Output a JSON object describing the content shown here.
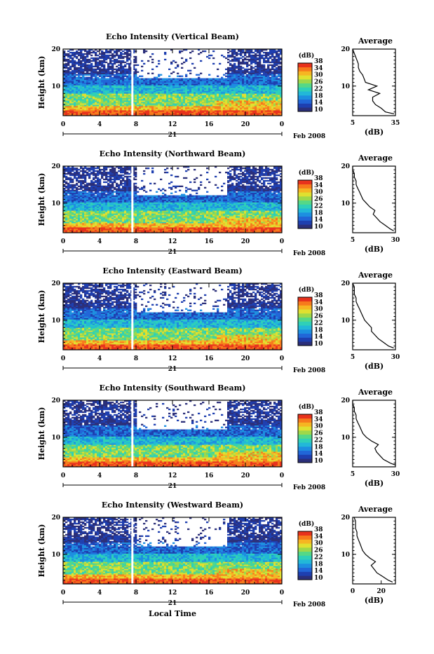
{
  "colors": {
    "scale": [
      "#2b2f7a",
      "#1e3fb0",
      "#2166d8",
      "#1d8fe0",
      "#22b8d8",
      "#2fd0b8",
      "#55d887",
      "#9ed84a",
      "#e0e030",
      "#f6b522",
      "#f77a1c",
      "#e8321c"
    ],
    "background": "#ffffff"
  },
  "chart_data": [
    {
      "type": "heatmap",
      "title": "Echo Intensity (Vertical Beam)",
      "xlabel": "",
      "ylabel": "Height (km)",
      "xlim": [
        0,
        24
      ],
      "ylim": [
        2,
        20
      ],
      "x_ticks": [
        "0",
        "4",
        "8",
        "12",
        "16",
        "20",
        "0"
      ],
      "y_ticks": [
        "20",
        "10"
      ],
      "date_day": "21",
      "date_label": "Feb 2008",
      "colorbar": {
        "unit": "(dB)",
        "ticks": [
          "38",
          "34",
          "30",
          "26",
          "22",
          "18",
          "14",
          "10"
        ],
        "range": [
          10,
          38
        ]
      },
      "profile": {
        "title": "Average",
        "xlabel": "(dB)",
        "xlim": [
          5,
          35
        ],
        "x_ticks": [
          "5",
          "35"
        ],
        "height": [
          2.5,
          3,
          4,
          5,
          6,
          7,
          8,
          9,
          10,
          11,
          12,
          13,
          14,
          15,
          16,
          17,
          18,
          19,
          20
        ],
        "value": [
          34,
          28,
          25,
          21,
          19,
          19,
          24,
          16,
          22,
          14,
          13,
          12,
          10,
          9,
          9,
          8,
          7,
          6,
          5
        ]
      }
    },
    {
      "type": "heatmap",
      "title": "Echo Intensity (Northward Beam)",
      "xlabel": "",
      "ylabel": "Height (km)",
      "xlim": [
        0,
        24
      ],
      "ylim": [
        2,
        20
      ],
      "x_ticks": [
        "0",
        "4",
        "8",
        "12",
        "16",
        "20",
        "0"
      ],
      "y_ticks": [
        "20",
        "10"
      ],
      "date_day": "21",
      "date_label": "Feb 2008",
      "colorbar": {
        "unit": "(dB)",
        "ticks": [
          "38",
          "34",
          "30",
          "26",
          "22",
          "18",
          "14",
          "10"
        ],
        "range": [
          10,
          38
        ]
      },
      "profile": {
        "title": "Average",
        "xlabel": "(dB)",
        "xlim": [
          5,
          30
        ],
        "x_ticks": [
          "5",
          "30"
        ],
        "height": [
          2.5,
          3,
          4,
          5,
          6,
          7,
          8,
          9,
          10,
          11,
          12,
          13,
          14,
          15,
          16,
          17,
          18,
          19,
          20
        ],
        "value": [
          29,
          27,
          24,
          21,
          19,
          17,
          18,
          15,
          13,
          11,
          10,
          9,
          8,
          7,
          7,
          6,
          6,
          5,
          5
        ]
      }
    },
    {
      "type": "heatmap",
      "title": "Echo Intensity (Eastward Beam)",
      "xlabel": "",
      "ylabel": "Height (km)",
      "xlim": [
        0,
        24
      ],
      "ylim": [
        2,
        20
      ],
      "x_ticks": [
        "0",
        "4",
        "8",
        "12",
        "16",
        "20",
        "0"
      ],
      "y_ticks": [
        "20",
        "10"
      ],
      "date_day": "21",
      "date_label": "Feb 2008",
      "colorbar": {
        "unit": "(dB)",
        "ticks": [
          "38",
          "34",
          "30",
          "26",
          "22",
          "18",
          "14",
          "10"
        ],
        "range": [
          10,
          38
        ]
      },
      "profile": {
        "title": "Average",
        "xlabel": "(dB)",
        "xlim": [
          5,
          30
        ],
        "x_ticks": [
          "5",
          "30"
        ],
        "height": [
          2.5,
          3,
          4,
          5,
          6,
          7,
          8,
          9,
          10,
          11,
          12,
          13,
          14,
          15,
          16,
          17,
          18,
          19,
          20
        ],
        "value": [
          29,
          26,
          23,
          20,
          18,
          16,
          16,
          14,
          12,
          11,
          10,
          9,
          8,
          7,
          7,
          6,
          6,
          6,
          5
        ]
      }
    },
    {
      "type": "heatmap",
      "title": "Echo Intensity (Southward Beam)",
      "xlabel": "",
      "ylabel": "Height (km)",
      "xlim": [
        0,
        24
      ],
      "ylim": [
        2,
        20
      ],
      "x_ticks": [
        "0",
        "4",
        "8",
        "12",
        "16",
        "20",
        "0"
      ],
      "y_ticks": [
        "20",
        "10"
      ],
      "date_day": "21",
      "date_label": "Feb 2008",
      "colorbar": {
        "unit": "(dB)",
        "ticks": [
          "38",
          "34",
          "30",
          "26",
          "22",
          "18",
          "14",
          "10"
        ],
        "range": [
          10,
          38
        ]
      },
      "profile": {
        "title": "Average",
        "xlabel": "(dB)",
        "xlim": [
          5,
          30
        ],
        "x_ticks": [
          "5",
          "30"
        ],
        "height": [
          2.5,
          3,
          4,
          5,
          6,
          7,
          8,
          9,
          10,
          11,
          12,
          13,
          14,
          15,
          16,
          17,
          18,
          19,
          20
        ],
        "value": [
          30,
          27,
          23,
          21,
          19,
          18,
          20,
          16,
          13,
          11,
          10,
          9,
          8,
          7,
          7,
          6,
          6,
          5,
          5
        ]
      }
    },
    {
      "type": "heatmap",
      "title": "Echo Intensity (Westward Beam)",
      "xlabel": "Local Time",
      "ylabel": "Height (km)",
      "xlim": [
        0,
        24
      ],
      "ylim": [
        2,
        20
      ],
      "x_ticks": [
        "0",
        "4",
        "8",
        "12",
        "16",
        "20",
        "0"
      ],
      "y_ticks": [
        "20",
        "10"
      ],
      "date_day": "21",
      "date_label": "Feb 2008",
      "colorbar": {
        "unit": "(dB)",
        "ticks": [
          "38",
          "34",
          "30",
          "26",
          "22",
          "18",
          "14",
          "10"
        ],
        "range": [
          10,
          38
        ]
      },
      "profile": {
        "title": "Average",
        "xlabel": "(dB)",
        "xlim": [
          0,
          30
        ],
        "x_ticks": [
          "0",
          "20"
        ],
        "height": [
          2.5,
          3,
          4,
          5,
          6,
          7,
          8,
          9,
          10,
          11,
          12,
          13,
          14,
          15,
          16,
          17,
          18,
          19,
          20
        ],
        "value": [
          28,
          25,
          21,
          17,
          15,
          13,
          16,
          12,
          9,
          7,
          6,
          5,
          4,
          3,
          3,
          2,
          2,
          2,
          1
        ]
      }
    }
  ]
}
